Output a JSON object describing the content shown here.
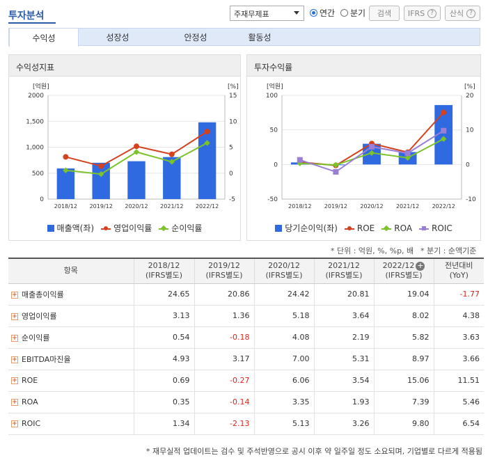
{
  "header": {
    "title": "투자분석",
    "select_value": "주재무제표",
    "radio_annual": "연간",
    "radio_quarter": "분기",
    "search_btn": "검색",
    "ifrs_btn": "IFRS",
    "formula_btn": "산식"
  },
  "tabs": [
    "수익성",
    "성장성",
    "안정성",
    "활동성"
  ],
  "left_panel": {
    "title": "수익성지표",
    "left_unit": "[억원]",
    "right_unit": "[%]",
    "legend": [
      "매출액(좌)",
      "영업이익률",
      "순이익률"
    ]
  },
  "right_panel": {
    "title": "투자수익률",
    "left_unit": "[억원]",
    "right_unit": "[%]",
    "legend": [
      "당기순이익(좌)",
      "ROE",
      "ROA",
      "ROIC"
    ]
  },
  "colors": {
    "bar": "#2f6ae0",
    "red": "#d3411f",
    "green": "#7cc32a",
    "purple": "#9b7fd6"
  },
  "chart_data": [
    {
      "type": "bar",
      "title": "수익성지표",
      "categories": [
        "2018/12",
        "2019/12",
        "2020/12",
        "2021/12",
        "2022/12"
      ],
      "ylim_left": [
        0,
        2000
      ],
      "yticks_left": [
        "2000",
        "1,500",
        "1,000",
        "500",
        "0"
      ],
      "ylim_right": [
        -5,
        15
      ],
      "yticks_right": [
        "15",
        "10",
        "5",
        "0",
        "-5"
      ],
      "series": [
        {
          "name": "매출액(좌)",
          "type": "bar",
          "axis": "left",
          "values": [
            590,
            700,
            730,
            810,
            1480
          ]
        },
        {
          "name": "영업이익률",
          "type": "line",
          "axis": "right",
          "values": [
            3.13,
            1.36,
            5.18,
            3.64,
            8.02
          ]
        },
        {
          "name": "순이익률",
          "type": "line",
          "axis": "right",
          "values": [
            0.54,
            -0.18,
            4.08,
            2.19,
            5.82
          ]
        }
      ]
    },
    {
      "type": "bar",
      "title": "투자수익률",
      "categories": [
        "2018/12",
        "2019/12",
        "2020/12",
        "2021/12",
        "2022/12"
      ],
      "ylim_left": [
        -50,
        100
      ],
      "yticks_left": [
        "100",
        "50",
        "0",
        "-50"
      ],
      "ylim_right": [
        -10,
        20
      ],
      "yticks_right": [
        "20",
        "10",
        "0",
        "-10"
      ],
      "series": [
        {
          "name": "당기순이익(좌)",
          "type": "bar",
          "axis": "left",
          "values": [
            3,
            -1,
            30,
            18,
            86
          ]
        },
        {
          "name": "ROE",
          "type": "line",
          "axis": "right",
          "values": [
            0.69,
            -0.27,
            6.06,
            3.54,
            15.06
          ]
        },
        {
          "name": "ROA",
          "type": "line",
          "axis": "right",
          "values": [
            0.35,
            -0.14,
            3.35,
            1.93,
            7.39
          ]
        },
        {
          "name": "ROIC",
          "type": "line",
          "axis": "right",
          "values": [
            1.34,
            -2.13,
            5.13,
            3.26,
            9.8
          ]
        }
      ]
    }
  ],
  "notes": {
    "unit": "* 단위 : 억원, %, %p, 배",
    "quarter": "* 분기 : 순액기준"
  },
  "table": {
    "headers": [
      "항목",
      "2018/12\n(IFRS별도)",
      "2019/12\n(IFRS별도)",
      "2020/12\n(IFRS별도)",
      "2021/12\n(IFRS별도)",
      "2022/12\n(IFRS별도)",
      "전년대비\n(YoY)"
    ],
    "rows": [
      {
        "name": "매출총이익률",
        "values": [
          "24.65",
          "20.86",
          "24.42",
          "20.81",
          "19.04",
          "-1.77"
        ]
      },
      {
        "name": "영업이익률",
        "values": [
          "3.13",
          "1.36",
          "5.18",
          "3.64",
          "8.02",
          "4.38"
        ]
      },
      {
        "name": "순이익률",
        "values": [
          "0.54",
          "-0.18",
          "4.08",
          "2.19",
          "5.82",
          "3.63"
        ]
      },
      {
        "name": "EBITDA마진율",
        "values": [
          "4.93",
          "3.17",
          "7.00",
          "5.31",
          "8.97",
          "3.66"
        ]
      },
      {
        "name": "ROE",
        "values": [
          "0.69",
          "-0.27",
          "6.06",
          "3.54",
          "15.06",
          "11.51"
        ]
      },
      {
        "name": "ROA",
        "values": [
          "0.35",
          "-0.14",
          "3.35",
          "1.93",
          "7.39",
          "5.46"
        ]
      },
      {
        "name": "ROIC",
        "values": [
          "1.34",
          "-2.13",
          "5.13",
          "3.26",
          "9.80",
          "6.54"
        ]
      }
    ]
  },
  "footer": "* 재무실적 업데이트는 검수 및 주석반영으로 공시 이후 약 일주일 정도 소요되며, 기업별로 다르게 적용됨"
}
